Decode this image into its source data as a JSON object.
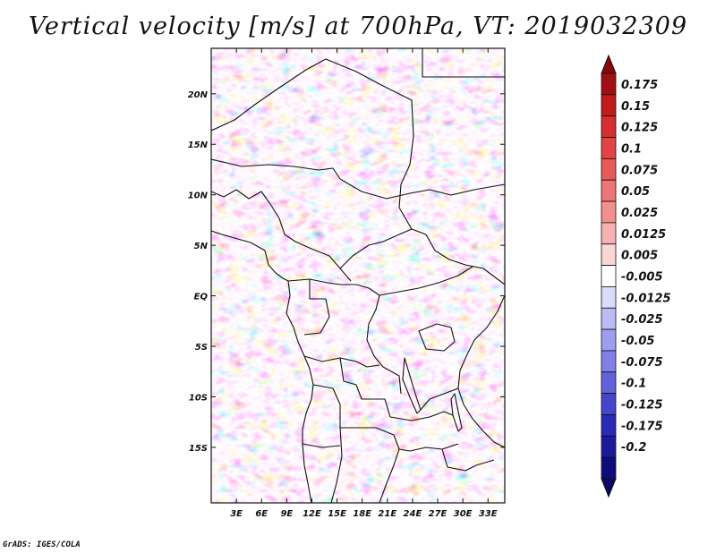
{
  "map": {
    "title": "Vertical velocity [m/s] at 700hPa, VT: 2019032309",
    "variable": "Vertical velocity",
    "units": "m/s",
    "level": "700hPa",
    "valid_time": "2019032309",
    "lon_range_deg": [
      0,
      35
    ],
    "lat_range_deg": [
      -20.5,
      24.5
    ],
    "lon_ticks": [
      {
        "value": 3,
        "label": "3E"
      },
      {
        "value": 6,
        "label": "6E"
      },
      {
        "value": 9,
        "label": "9E"
      },
      {
        "value": 12,
        "label": "12E"
      },
      {
        "value": 15,
        "label": "15E"
      },
      {
        "value": 18,
        "label": "18E"
      },
      {
        "value": 21,
        "label": "21E"
      },
      {
        "value": 24,
        "label": "24E"
      },
      {
        "value": 27,
        "label": "27E"
      },
      {
        "value": 30,
        "label": "30E"
      },
      {
        "value": 33,
        "label": "33E"
      }
    ],
    "lat_ticks": [
      {
        "value": 20,
        "label": "20N"
      },
      {
        "value": 15,
        "label": "15N"
      },
      {
        "value": 10,
        "label": "10N"
      },
      {
        "value": 5,
        "label": "5N"
      },
      {
        "value": 0,
        "label": "EQ"
      },
      {
        "value": -5,
        "label": "5S"
      },
      {
        "value": -10,
        "label": "10S"
      },
      {
        "value": -15,
        "label": "15S"
      }
    ]
  },
  "colorbar": {
    "labels": [
      "0.175",
      "0.15",
      "0.125",
      "0.1",
      "0.075",
      "0.05",
      "0.025",
      "0.0125",
      "0.005",
      "-0.005",
      "-0.0125",
      "-0.025",
      "-0.05",
      "-0.075",
      "-0.1",
      "-0.125",
      "-0.175",
      "-0.2"
    ],
    "colors": [
      "#a01010",
      "#c01c1c",
      "#d62f2f",
      "#e04444",
      "#e85a5a",
      "#ee7575",
      "#f29090",
      "#f6b2b2",
      "#fad6d6",
      "#ffffff",
      "#dcdcfa",
      "#bcbcf4",
      "#9e9ef0",
      "#8080e8",
      "#6262dc",
      "#4444cc",
      "#2a2ab6",
      "#1a1a9a",
      "#0c0c7a"
    ]
  },
  "credit": "GrADS: IGES/COLA"
}
